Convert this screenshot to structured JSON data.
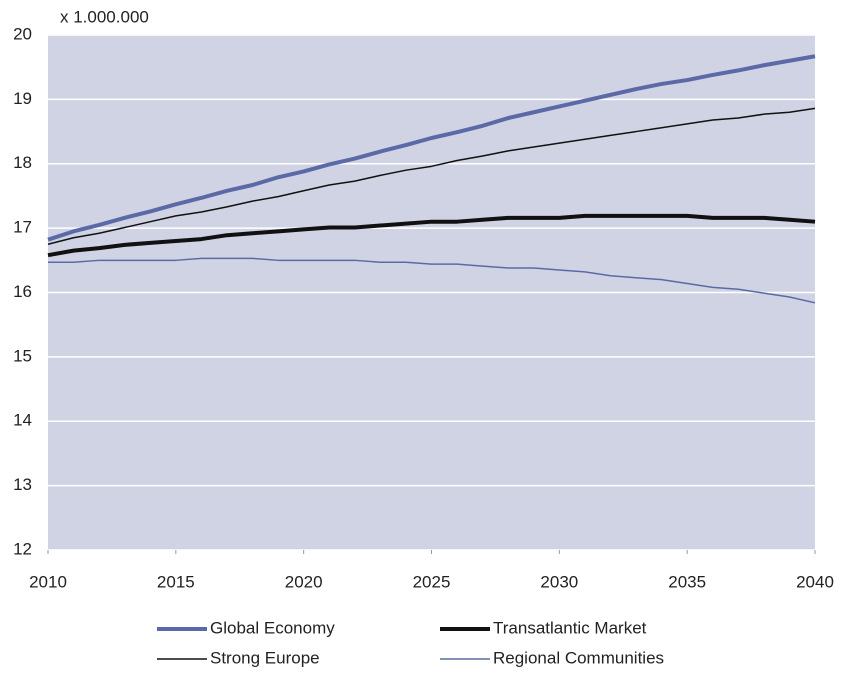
{
  "chart_data": {
    "type": "line",
    "ylabel": "x 1.000.000",
    "x": [
      2010,
      2011,
      2012,
      2013,
      2014,
      2015,
      2016,
      2017,
      2018,
      2019,
      2020,
      2021,
      2022,
      2023,
      2024,
      2025,
      2026,
      2027,
      2028,
      2029,
      2030,
      2031,
      2032,
      2033,
      2034,
      2035,
      2036,
      2037,
      2038,
      2039,
      2040
    ],
    "series": [
      {
        "name": "Global Economy",
        "color": "#5b6aa6",
        "width": 4,
        "values": [
          16.82,
          16.95,
          17.05,
          17.16,
          17.26,
          17.37,
          17.47,
          17.58,
          17.67,
          17.79,
          17.88,
          17.99,
          18.08,
          18.19,
          18.29,
          18.4,
          18.49,
          18.59,
          18.71,
          18.8,
          18.89,
          18.98,
          19.07,
          19.16,
          19.24,
          19.3,
          19.38,
          19.45,
          19.53,
          19.6,
          19.67
        ]
      },
      {
        "name": "Transatlantic Market",
        "color": "#111111",
        "width": 4,
        "values": [
          16.58,
          16.65,
          16.69,
          16.74,
          16.77,
          16.8,
          16.83,
          16.89,
          16.92,
          16.95,
          16.98,
          17.01,
          17.01,
          17.04,
          17.07,
          17.1,
          17.1,
          17.13,
          17.16,
          17.16,
          17.16,
          17.19,
          17.19,
          17.19,
          17.19,
          17.19,
          17.16,
          17.16,
          17.16,
          17.13,
          17.1
        ]
      },
      {
        "name": "Strong Europe",
        "color": "#111111",
        "width": 1.5,
        "values": [
          16.75,
          16.85,
          16.92,
          17.01,
          17.1,
          17.19,
          17.25,
          17.33,
          17.42,
          17.49,
          17.58,
          17.67,
          17.73,
          17.82,
          17.9,
          17.96,
          18.05,
          18.12,
          18.2,
          18.26,
          18.32,
          18.38,
          18.44,
          18.5,
          18.56,
          18.62,
          18.68,
          18.71,
          18.77,
          18.8,
          18.86
        ]
      },
      {
        "name": "Regional Communities",
        "color": "#5b6aa6",
        "width": 1.5,
        "values": [
          16.47,
          16.47,
          16.5,
          16.5,
          16.5,
          16.5,
          16.53,
          16.53,
          16.53,
          16.5,
          16.5,
          16.5,
          16.5,
          16.47,
          16.47,
          16.44,
          16.44,
          16.41,
          16.38,
          16.38,
          16.35,
          16.32,
          16.26,
          16.23,
          16.2,
          16.14,
          16.08,
          16.05,
          15.99,
          15.93,
          15.84
        ]
      }
    ],
    "xlim": [
      2010,
      2040
    ],
    "xticks": [
      2010,
      2015,
      2020,
      2025,
      2030,
      2035,
      2040
    ],
    "ylim": [
      12,
      20
    ],
    "yticks": [
      12,
      13,
      14,
      15,
      16,
      17,
      18,
      19,
      20
    ],
    "grid": true,
    "plot_background": "#d0d3e3",
    "legend": "bottom"
  }
}
